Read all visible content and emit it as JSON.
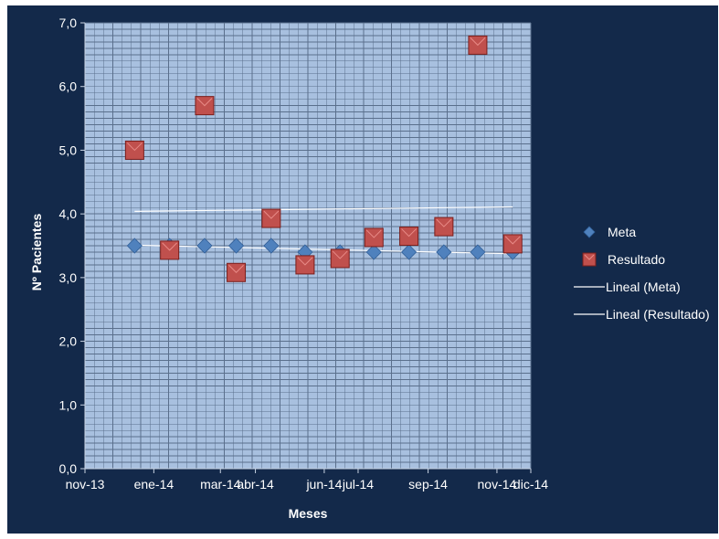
{
  "chart_data": {
    "type": "scatter",
    "title": "",
    "xlabel": "Meses",
    "ylabel": "Nº Pacientes",
    "xlim": [
      "2013-11-01",
      "2014-12-01"
    ],
    "ylim": [
      0,
      7
    ],
    "y_ticks": [
      "0,0",
      "1,0",
      "2,0",
      "3,0",
      "4,0",
      "5,0",
      "6,0",
      "7,0"
    ],
    "y_tick_values": [
      0,
      1,
      2,
      3,
      4,
      5,
      6,
      7
    ],
    "x_ticks": [
      "nov-13",
      "ene-14",
      "mar-14",
      "abr-14",
      "jun-14",
      "jul-14",
      "sep-14",
      "nov-14",
      "dic-14"
    ],
    "x_tick_dates": [
      "2013-11-01",
      "2014-01-01",
      "2014-03-01",
      "2014-04-01",
      "2014-06-01",
      "2014-07-01",
      "2014-09-01",
      "2014-11-01",
      "2014-12-01"
    ],
    "grid": true,
    "legend_position": "right",
    "series": [
      {
        "name": "Meta",
        "marker": "diamond",
        "color": "#4f81bd",
        "x": [
          "2013-12-15",
          "2014-01-15",
          "2014-02-15",
          "2014-03-15",
          "2014-04-15",
          "2014-05-15",
          "2014-06-15",
          "2014-07-15",
          "2014-08-15",
          "2014-09-15",
          "2014-10-15",
          "2014-11-15"
        ],
        "y": [
          3.5,
          3.5,
          3.5,
          3.5,
          3.5,
          3.4,
          3.4,
          3.4,
          3.4,
          3.4,
          3.4,
          3.4
        ]
      },
      {
        "name": "Resultado",
        "marker": "square",
        "color": "#c0504d",
        "x": [
          "2013-12-15",
          "2014-01-15",
          "2014-02-15",
          "2014-03-15",
          "2014-04-15",
          "2014-05-15",
          "2014-06-15",
          "2014-07-15",
          "2014-08-15",
          "2014-09-15",
          "2014-10-15",
          "2014-11-15"
        ],
        "y": [
          5.0,
          3.43,
          5.7,
          3.08,
          3.93,
          3.2,
          3.3,
          3.63,
          3.65,
          3.8,
          6.65,
          3.53
        ]
      }
    ],
    "trendlines": [
      {
        "name": "Lineal (Meta)",
        "type": "linear",
        "of": "Meta",
        "color": "#ffffff"
      },
      {
        "name": "Lineal (Resultado)",
        "type": "linear",
        "of": "Resultado",
        "color": "#ffffff"
      }
    ],
    "colors": {
      "background": "#13294a",
      "plot_area": "#a8c0df",
      "grid": "#5a6f8c"
    }
  }
}
